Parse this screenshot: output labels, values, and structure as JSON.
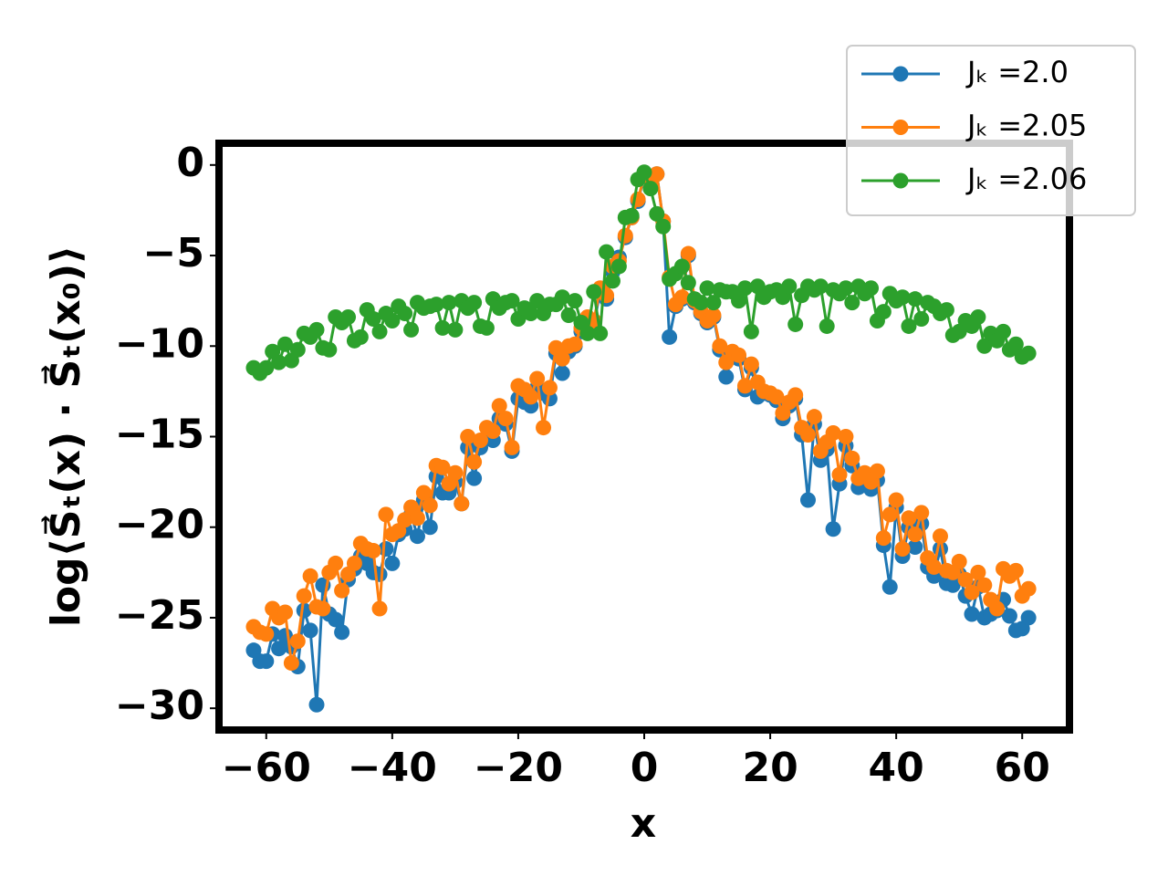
{
  "chart_data": {
    "type": "line",
    "xlabel": "x",
    "ylabel": "log⟨S⃗ₜ(x) · S⃗ₜ(x₀)⟩",
    "x": [
      -62,
      -61,
      -60,
      -59,
      -58,
      -57,
      -56,
      -55,
      -54,
      -53,
      -52,
      -51,
      -50,
      -49,
      -48,
      -47,
      -46,
      -45,
      -44,
      -43,
      -42,
      -41,
      -40,
      -39,
      -38,
      -37,
      -36,
      -35,
      -34,
      -33,
      -32,
      -31,
      -30,
      -29,
      -28,
      -27,
      -26,
      -25,
      -24,
      -23,
      -22,
      -21,
      -20,
      -19,
      -18,
      -17,
      -16,
      -15,
      -14,
      -13,
      -12,
      -11,
      -10,
      -9,
      -8,
      -7,
      -6,
      -5,
      -4,
      -3,
      -2,
      -1,
      0,
      1,
      2,
      3,
      4,
      5,
      6,
      7,
      8,
      9,
      10,
      11,
      12,
      13,
      14,
      15,
      16,
      17,
      18,
      19,
      20,
      21,
      22,
      23,
      24,
      25,
      26,
      27,
      28,
      29,
      30,
      31,
      32,
      33,
      34,
      35,
      36,
      37,
      38,
      39,
      40,
      41,
      42,
      43,
      44,
      45,
      46,
      47,
      48,
      49,
      50,
      51,
      52,
      53,
      54,
      55,
      56,
      57,
      58,
      59,
      60,
      61
    ],
    "series": [
      {
        "name": "Jₖ =2.0",
        "color": "#1f77b4",
        "values": [
          -26.8,
          -27.4,
          -27.4,
          -25.9,
          -26.7,
          -26.0,
          -26.6,
          -27.7,
          -24.6,
          -25.7,
          -29.8,
          -23.2,
          -24.8,
          -25.1,
          -25.8,
          -22.9,
          -22.3,
          -21.6,
          -22.0,
          -22.5,
          -22.6,
          -21.2,
          -22.0,
          -20.4,
          -20.1,
          -19.3,
          -20.5,
          -18.5,
          -20.0,
          -17.2,
          -18.1,
          -18.1,
          -17.5,
          -18.7,
          -15.6,
          -17.3,
          -15.6,
          -15.1,
          -15.2,
          -14.0,
          -14.3,
          -15.8,
          -12.9,
          -13.1,
          -13.3,
          -12.3,
          -12.6,
          -12.9,
          -10.4,
          -11.5,
          -10.3,
          -10.0,
          -9.2,
          -8.6,
          -8.8,
          -7.0,
          -7.4,
          -5.9,
          -5.1,
          -4.0,
          -2.9,
          -2.0,
          -0.6,
          -0.8,
          -0.5,
          -3.1,
          -9.5,
          -7.8,
          -7.4,
          -5.0,
          -7.6,
          -8.2,
          -8.7,
          -8.4,
          -10.2,
          -11.7,
          -10.5,
          -10.7,
          -12.4,
          -11.2,
          -12.8,
          -12.6,
          -12.7,
          -13.0,
          -14.0,
          -13.3,
          -12.9,
          -14.9,
          -18.5,
          -14.3,
          -16.3,
          -15.7,
          -20.1,
          -17.6,
          -15.5,
          -16.6,
          -17.8,
          -17.5,
          -17.9,
          -17.4,
          -21.0,
          -23.3,
          -18.9,
          -21.6,
          -20.0,
          -21.1,
          -19.8,
          -22.2,
          -22.7,
          -21.2,
          -23.1,
          -23.2,
          -22.6,
          -23.8,
          -24.8,
          -23.3,
          -25.0,
          -24.8,
          -24.6,
          -24.0,
          -24.9,
          -25.7,
          -25.6,
          -25.0
        ]
      },
      {
        "name": "Jₖ =2.05",
        "color": "#ff7f0e",
        "values": [
          -25.5,
          -25.8,
          -25.9,
          -24.5,
          -25.0,
          -24.7,
          -27.5,
          -26.3,
          -23.8,
          -22.7,
          -24.4,
          -24.5,
          -22.5,
          -22.0,
          -23.5,
          -22.6,
          -22.0,
          -20.9,
          -21.2,
          -21.3,
          -24.5,
          -19.3,
          -20.4,
          -20.2,
          -19.6,
          -18.9,
          -19.5,
          -18.1,
          -18.8,
          -16.6,
          -16.7,
          -17.6,
          -17.0,
          -18.7,
          -15.0,
          -16.4,
          -15.2,
          -14.5,
          -14.7,
          -13.3,
          -14.0,
          -15.6,
          -12.2,
          -12.4,
          -12.8,
          -11.8,
          -14.5,
          -12.3,
          -10.1,
          -10.7,
          -10.0,
          -9.9,
          -9.0,
          -8.4,
          -8.6,
          -6.8,
          -7.2,
          -5.6,
          -5.3,
          -3.9,
          -2.9,
          -1.9,
          -0.6,
          -0.8,
          -0.5,
          -3.1,
          -6.2,
          -7.7,
          -7.3,
          -4.9,
          -7.5,
          -8.1,
          -8.6,
          -8.3,
          -10.0,
          -10.9,
          -10.3,
          -10.5,
          -12.2,
          -11.0,
          -12.0,
          -12.5,
          -12.6,
          -12.8,
          -13.7,
          -13.1,
          -12.7,
          -14.5,
          -14.9,
          -13.9,
          -15.8,
          -15.3,
          -14.8,
          -17.1,
          -15.0,
          -16.2,
          -17.3,
          -17.0,
          -17.5,
          -16.9,
          -20.6,
          -19.3,
          -18.5,
          -21.2,
          -19.5,
          -20.4,
          -19.2,
          -21.7,
          -22.2,
          -20.5,
          -22.4,
          -22.5,
          -21.9,
          -22.9,
          -23.6,
          -22.5,
          -23.2,
          -24.0,
          -24.5,
          -22.3,
          -22.7,
          -22.4,
          -23.8,
          -23.4
        ]
      },
      {
        "name": "Jₖ =2.06",
        "color": "#2ca02c",
        "values": [
          -11.2,
          -11.5,
          -11.2,
          -10.3,
          -10.9,
          -9.9,
          -10.8,
          -10.2,
          -9.3,
          -9.5,
          -9.1,
          -10.1,
          -10.2,
          -8.4,
          -8.7,
          -8.4,
          -9.7,
          -9.5,
          -8.0,
          -8.5,
          -9.2,
          -8.2,
          -8.6,
          -7.8,
          -8.2,
          -9.1,
          -7.6,
          -7.9,
          -7.8,
          -7.7,
          -9.0,
          -7.6,
          -9.1,
          -7.5,
          -7.9,
          -7.6,
          -8.9,
          -9.0,
          -7.4,
          -7.9,
          -7.6,
          -7.5,
          -8.5,
          -7.9,
          -8.2,
          -7.5,
          -8.2,
          -7.7,
          -7.7,
          -7.3,
          -8.3,
          -7.5,
          -8.7,
          -9.3,
          -7.0,
          -9.3,
          -4.8,
          -6.4,
          -5.6,
          -2.9,
          -2.8,
          -0.8,
          -0.4,
          -1.3,
          -2.7,
          -3.4,
          -6.3,
          -6.0,
          -5.6,
          -6.5,
          -7.4,
          -7.6,
          -6.8,
          -7.6,
          -6.9,
          -7.0,
          -7.0,
          -7.5,
          -6.8,
          -9.2,
          -6.7,
          -7.3,
          -7.0,
          -6.9,
          -7.3,
          -6.7,
          -8.8,
          -7.2,
          -6.7,
          -6.9,
          -6.7,
          -8.9,
          -6.9,
          -7.1,
          -6.8,
          -7.6,
          -6.7,
          -7.1,
          -6.8,
          -8.6,
          -8.1,
          -7.1,
          -7.5,
          -7.3,
          -8.9,
          -7.4,
          -8.5,
          -7.6,
          -7.8,
          -8.2,
          -8.0,
          -9.4,
          -9.2,
          -8.6,
          -8.9,
          -8.4,
          -10.0,
          -9.3,
          -9.7,
          -9.2,
          -10.2,
          -9.9,
          -10.6,
          -10.4
        ]
      }
    ],
    "xlim": [
      -67.5,
      67.5
    ],
    "ylim": [
      -31.2,
      1.2
    ],
    "xticks": [
      {
        "value": -60,
        "label": "−60"
      },
      {
        "value": -40,
        "label": "−40"
      },
      {
        "value": -20,
        "label": "−20"
      },
      0,
      20,
      40,
      60
    ],
    "yticks": [
      0,
      {
        "value": -5,
        "label": "−5"
      },
      {
        "value": -10,
        "label": "−10"
      },
      {
        "value": -15,
        "label": "−15"
      },
      {
        "value": -20,
        "label": "−20"
      },
      {
        "value": -25,
        "label": "−25"
      },
      {
        "value": -30,
        "label": "−30"
      }
    ],
    "grid": false,
    "legend": "upper right"
  }
}
